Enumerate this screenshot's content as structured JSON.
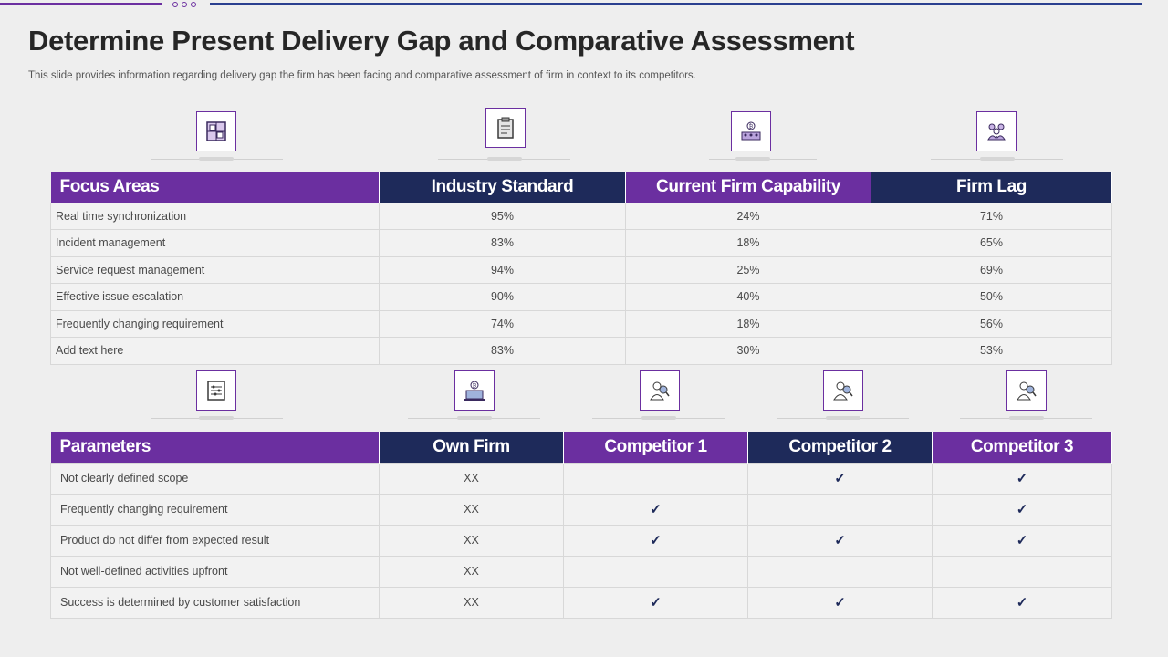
{
  "title": "Determine Present Delivery Gap and Comparative Assessment",
  "subtitle": "This slide provides information regarding delivery gap the firm has been facing and comparative assessment of firm in context to its competitors.",
  "colors": {
    "purple": "#6b2fa0",
    "navy": "#1e2a5a",
    "check": "#1e2a5a"
  },
  "icons_top": [
    "layout-icon",
    "clipboard-icon",
    "bitcoin-team-icon",
    "team-icon"
  ],
  "icons_bottom": [
    "sliders-icon",
    "bitcoin-laptop-icon",
    "person-search-icon",
    "person-search-icon",
    "person-search-icon"
  ],
  "table1": {
    "headers": [
      "Focus Areas",
      "Industry Standard",
      "Current Firm Capability",
      "Firm Lag"
    ],
    "rows": [
      [
        "Real time synchronization",
        "95%",
        "24%",
        "71%"
      ],
      [
        "Incident management",
        "83%",
        "18%",
        "65%"
      ],
      [
        "Service request management",
        "94%",
        "25%",
        "69%"
      ],
      [
        "Effective issue escalation",
        "90%",
        "40%",
        "50%"
      ],
      [
        "Frequently changing requirement",
        "74%",
        "18%",
        "56%"
      ],
      [
        "Add text here",
        "83%",
        "30%",
        "53%"
      ]
    ]
  },
  "table2": {
    "headers": [
      "Parameters",
      "Own Firm",
      "Competitor 1",
      "Competitor 2",
      "Competitor 3"
    ],
    "rows": [
      [
        "Not clearly defined scope",
        "XX",
        "",
        "✓",
        "✓"
      ],
      [
        "Frequently changing requirement",
        "XX",
        "✓",
        "",
        "✓"
      ],
      [
        "Product do not differ from expected result",
        "XX",
        "✓",
        "✓",
        "✓"
      ],
      [
        "Not well-defined  activities upfront",
        "XX",
        "",
        "",
        ""
      ],
      [
        "Success is determined by customer satisfaction",
        "XX",
        "✓",
        "✓",
        "✓"
      ]
    ]
  }
}
